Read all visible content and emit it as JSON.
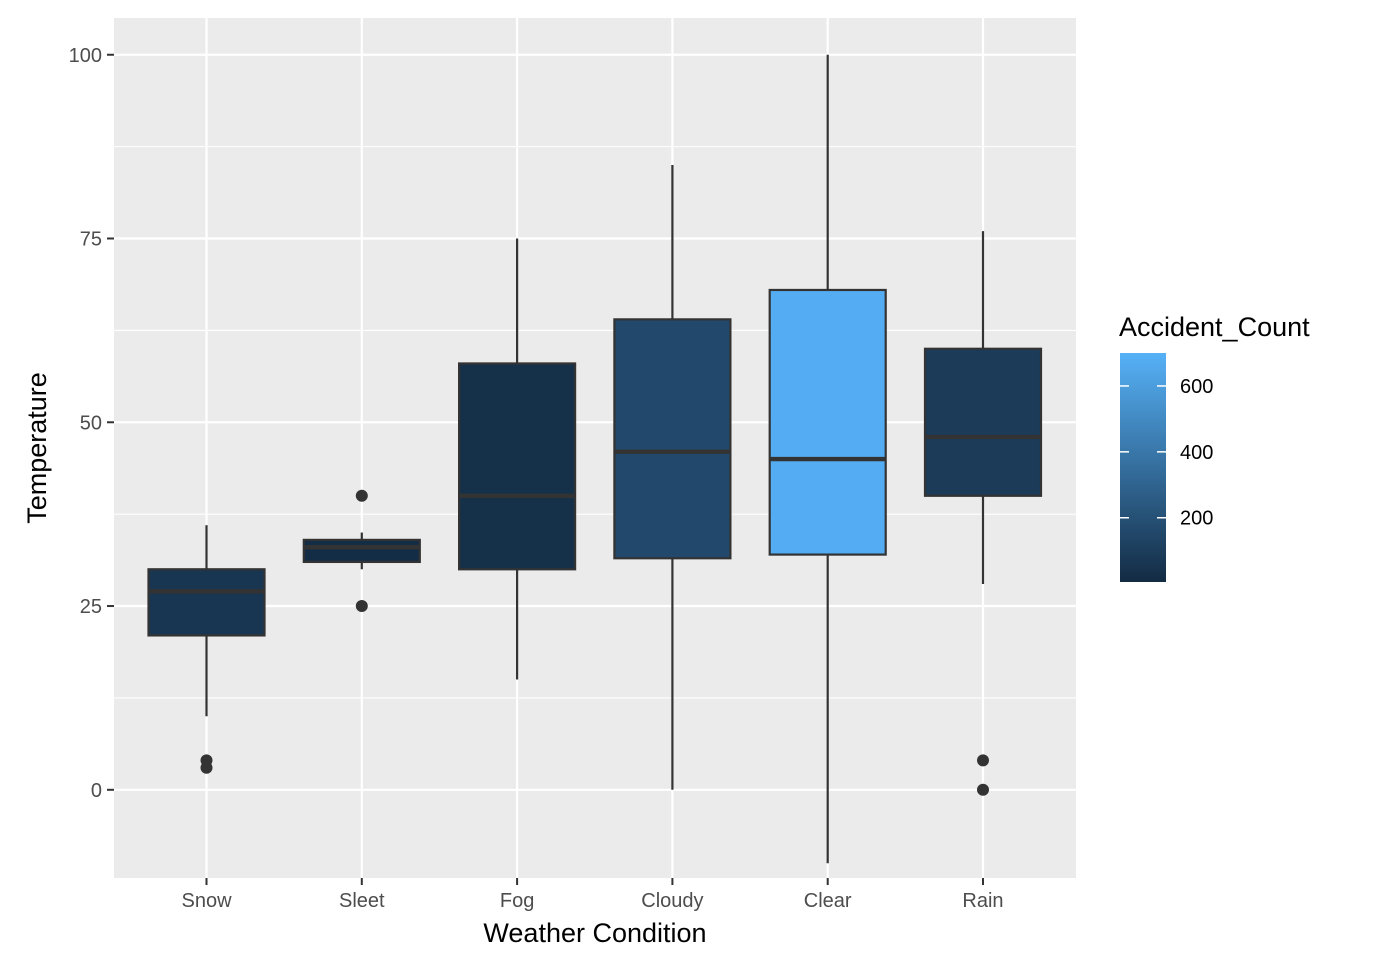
{
  "chart_data": {
    "type": "boxplot",
    "xlabel": "Weather Condition",
    "ylabel": "Temperature",
    "ylim": [
      -12,
      105
    ],
    "yticks": [
      0,
      25,
      50,
      75,
      100
    ],
    "grid": true,
    "legend": {
      "title": "Accident_Count",
      "placement": "right",
      "type": "colorbar",
      "range": [
        5,
        700
      ],
      "ticks": [
        200,
        400,
        600
      ],
      "low_color": "#132b43",
      "high_color": "#56b1f7"
    },
    "categories": [
      "Snow",
      "Sleet",
      "Fog",
      "Cloudy",
      "Clear",
      "Rain"
    ],
    "boxes": [
      {
        "category": "Snow",
        "whisker_low": 10,
        "q1": 21,
        "median": 27,
        "q3": 30,
        "whisker_high": 36,
        "outliers": [
          3,
          4
        ],
        "accident_count": 60
      },
      {
        "category": "Sleet",
        "whisker_low": 30,
        "q1": 31,
        "median": 33,
        "q3": 34,
        "whisker_high": 35,
        "outliers": [
          25,
          40
        ],
        "accident_count": 15
      },
      {
        "category": "Fog",
        "whisker_low": 15,
        "q1": 30,
        "median": 40,
        "q3": 58,
        "whisker_high": 75,
        "outliers": [],
        "accident_count": 30
      },
      {
        "category": "Cloudy",
        "whisker_low": 0,
        "q1": 31.5,
        "median": 46,
        "q3": 64,
        "whisker_high": 85,
        "outliers": [],
        "accident_count": 160
      },
      {
        "category": "Clear",
        "whisker_low": -10,
        "q1": 32,
        "median": 45,
        "q3": 68,
        "whisker_high": 100,
        "outliers": [],
        "accident_count": 680
      },
      {
        "category": "Rain",
        "whisker_low": 28,
        "q1": 40,
        "median": 48,
        "q3": 60,
        "whisker_high": 76,
        "outliers": [
          0,
          4
        ],
        "accident_count": 90
      }
    ]
  }
}
